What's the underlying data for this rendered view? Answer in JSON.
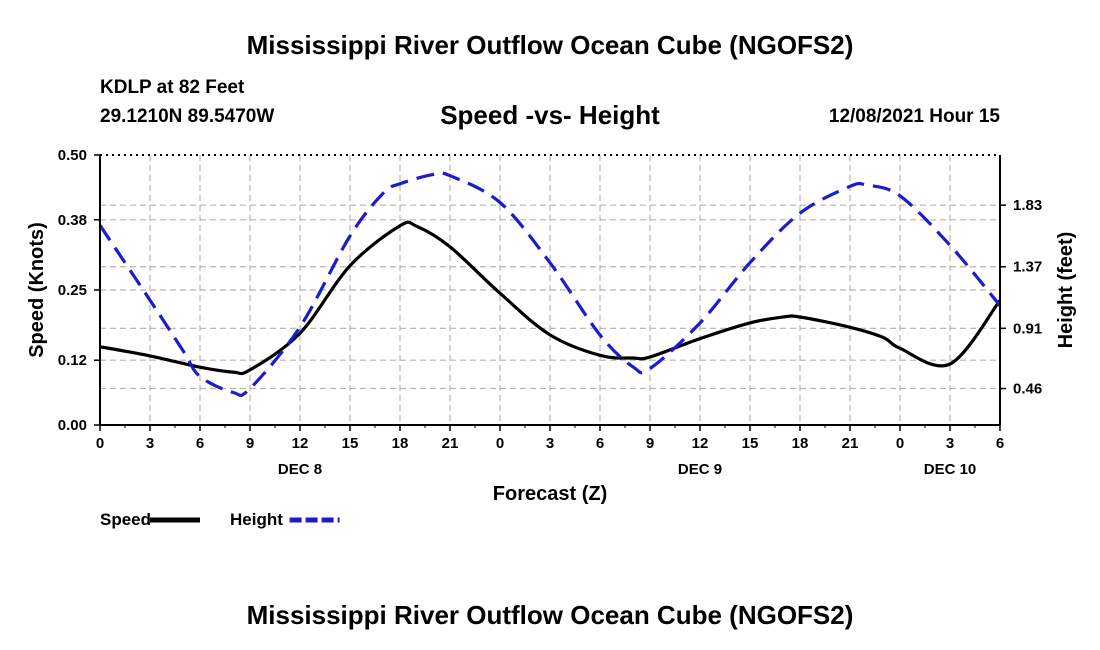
{
  "header": {
    "title": "Mississippi River Outflow Ocean Cube (NGOFS2)",
    "station": "KDLP at 82 Feet",
    "coords": "29.1210N  89.5470W",
    "subtitle": "Speed -vs- Height",
    "datetime": "12/08/2021 Hour 15",
    "footer_title": "Mississippi River Outflow Ocean Cube (NGOFS2)"
  },
  "chart_data": {
    "type": "line",
    "title": "Speed -vs- Height",
    "xlabel": "Forecast (Z)",
    "ylabel": "Speed (Knots)",
    "y2label": "Height (feet)",
    "x_hours_range": [
      0,
      54
    ],
    "x_tick_labels": [
      "0",
      "3",
      "6",
      "9",
      "12",
      "15",
      "18",
      "21",
      "0",
      "3",
      "6",
      "9",
      "12",
      "15",
      "18",
      "21",
      "0",
      "3",
      "6"
    ],
    "day_labels": [
      {
        "label": "DEC 8",
        "hour": 12
      },
      {
        "label": "DEC 9",
        "hour": 36
      },
      {
        "label": "DEC 10",
        "hour": 51
      }
    ],
    "y_range": [
      0,
      0.5
    ],
    "y_ticks": [
      "0.00",
      "0.12",
      "0.25",
      "0.38",
      "0.50"
    ],
    "y2_range": [
      0.1875,
      2.205
    ],
    "y2_ticks": [
      "0.46",
      "0.91",
      "1.37",
      "1.83"
    ],
    "grid": true,
    "series": [
      {
        "name": "Speed",
        "axis": "left",
        "color": "#000000",
        "dashed": false,
        "x": [
          0,
          3,
          6,
          8,
          9,
          12,
          15,
          18,
          19,
          21,
          24,
          27,
          30,
          32,
          33,
          36,
          39,
          41,
          42,
          45,
          47,
          48,
          51,
          54
        ],
        "values": [
          0.145,
          0.128,
          0.107,
          0.098,
          0.102,
          0.17,
          0.295,
          0.369,
          0.368,
          0.33,
          0.244,
          0.167,
          0.129,
          0.124,
          0.126,
          0.16,
          0.189,
          0.2,
          0.2,
          0.181,
          0.162,
          0.142,
          0.113,
          0.231
        ]
      },
      {
        "name": "Height",
        "axis": "right",
        "color": "#1c1ccc",
        "dashed": true,
        "x": [
          0,
          3,
          5,
          6,
          8,
          9,
          12,
          15,
          17,
          18,
          20,
          21,
          24,
          27,
          30,
          32,
          33,
          36,
          39,
          42,
          45,
          46,
          48,
          51,
          54
        ],
        "values": [
          1.68,
          1.12,
          0.74,
          0.55,
          0.43,
          0.46,
          0.92,
          1.6,
          1.92,
          1.99,
          2.06,
          2.05,
          1.85,
          1.4,
          0.86,
          0.62,
          0.61,
          0.95,
          1.4,
          1.77,
          1.97,
          1.98,
          1.9,
          1.53,
          1.08
        ]
      }
    ],
    "legend": [
      {
        "name": "Speed"
      },
      {
        "name": "Height"
      }
    ],
    "legend_placement": "bottom-left"
  }
}
